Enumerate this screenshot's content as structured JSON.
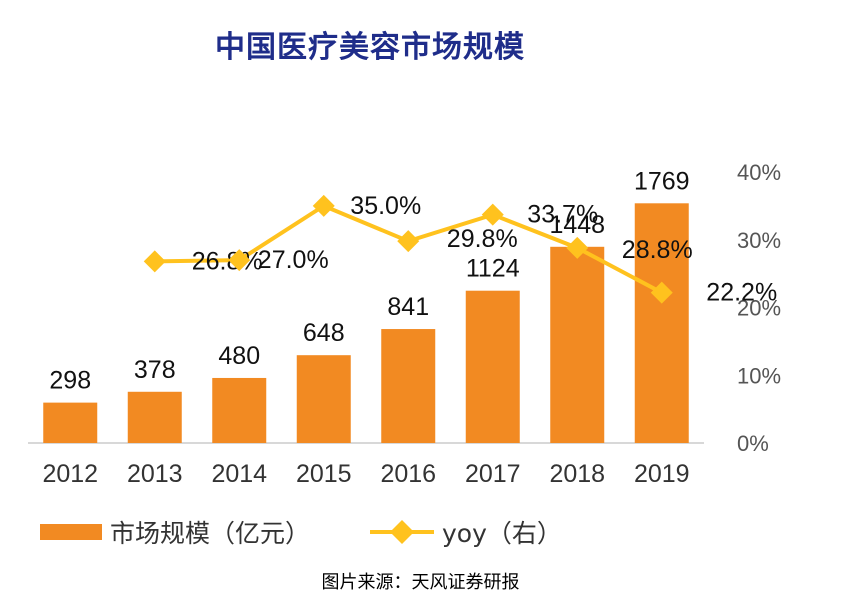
{
  "title": "中国医疗美容市场规模",
  "source": "图片来源：天风证券研报",
  "colors": {
    "bar": "#F28A22",
    "line": "#FFC21E",
    "title": "#1F2D8A",
    "axis": "#CCCCCC",
    "text": "#333333"
  },
  "chart_data": {
    "type": "bar",
    "title": "中国医疗美容市场规模",
    "categories": [
      "2012",
      "2013",
      "2014",
      "2015",
      "2016",
      "2017",
      "2018",
      "2019"
    ],
    "series": [
      {
        "name": "市场规模（亿元）",
        "type": "bar",
        "axis": "left",
        "values": [
          298,
          378,
          480,
          648,
          841,
          1124,
          1448,
          1769
        ],
        "labels": [
          "298",
          "378",
          "480",
          "648",
          "841",
          "1124",
          "1448",
          "1769"
        ]
      },
      {
        "name": "yoy（右）",
        "type": "line",
        "axis": "right",
        "values": [
          null,
          26.8,
          27.0,
          35.0,
          29.8,
          33.7,
          28.8,
          22.2
        ],
        "labels": [
          "",
          "26.8%",
          "27.0%",
          "35.0%",
          "29.8%",
          "33.7%",
          "28.8%",
          "22.2%"
        ]
      }
    ],
    "y_left": {
      "range": [
        0,
        2000
      ],
      "show_axis": false
    },
    "y_right": {
      "range": [
        0,
        40
      ],
      "ticks": [
        "0%",
        "10%",
        "20%",
        "30%",
        "40%"
      ]
    },
    "grid": false,
    "legend": "bottom"
  },
  "legend": {
    "bar_label": "市场规模（亿元）",
    "line_label": "yoy（右）"
  }
}
